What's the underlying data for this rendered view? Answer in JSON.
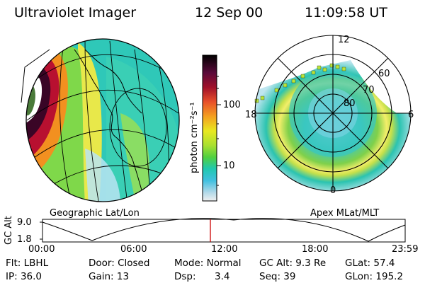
{
  "header": {
    "instrument": "Ultraviolet Imager",
    "date": "12 Sep 00",
    "time": "11:09:58 UT"
  },
  "colorbar": {
    "label": "photon cm⁻²s⁻¹",
    "ticks": [
      "100",
      "10"
    ],
    "scale": "log"
  },
  "left_map": {
    "caption": "Geographic Lat/Lon"
  },
  "right_map": {
    "caption": "Apex MLat/MLT",
    "mlt_labels": [
      "12",
      "18",
      "6",
      "0"
    ],
    "mlat_labels": [
      "60",
      "70",
      "80"
    ]
  },
  "orbit": {
    "y_axis_label": "GC Alt",
    "y_ticks": [
      "9.0",
      "1.8"
    ],
    "x_ticks": [
      "00:00",
      "06:00",
      "12:00",
      "18:00",
      "23:59"
    ],
    "current_time_marker": "11:09:58",
    "marker_color": "#cc0000"
  },
  "status": {
    "flt": "Flt: LBHL",
    "ip": "IP: 36.0",
    "door": "Door: Closed",
    "gain": "Gain: 13",
    "mode": "Mode: Normal",
    "dsp_label": "Dsp:",
    "dsp_value": "3.4",
    "gc_alt": "GC Alt: 9.3 Re",
    "seq": "Seq: 39",
    "glat": "GLat: 57.4",
    "glon": "GLon: 195.2"
  }
}
